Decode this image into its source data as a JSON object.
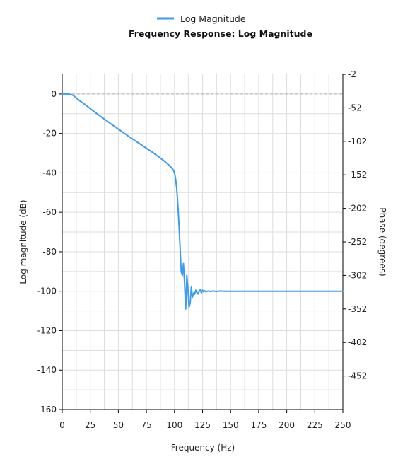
{
  "chart_data": {
    "type": "line",
    "title": "Frequency Response: Log Magnitude",
    "legend": {
      "placement": "top-center",
      "entries": [
        "Log Magnitude"
      ]
    },
    "xlabel": "Frequency (Hz)",
    "ylabel": "Log magnitude (dB)",
    "y2label": "Phase (degrees)",
    "xlim": [
      0,
      250
    ],
    "ylim": [
      -160,
      10
    ],
    "y2lim": [
      -502,
      -2
    ],
    "xticks": [
      "0",
      "25",
      "50",
      "75",
      "100",
      "125",
      "150",
      "175",
      "200",
      "225",
      "250"
    ],
    "yticks": [
      "0",
      "-20",
      "-40",
      "-60",
      "-80",
      "-100",
      "-120",
      "-140",
      "-160"
    ],
    "y2ticks": [
      "-2",
      "-52",
      "-102",
      "-152",
      "-202",
      "-252",
      "-302",
      "-352",
      "-402",
      "-452"
    ],
    "grid": true,
    "reference_line": {
      "y": 0,
      "style": "dashed",
      "color": "#bbbbbb"
    },
    "series": [
      {
        "name": "Log Magnitude",
        "color": "#3b9cf0",
        "x": [
          0,
          5,
          8,
          10,
          12,
          15,
          20,
          30,
          40,
          50,
          60,
          70,
          80,
          90,
          95,
          97,
          99,
          100,
          101,
          102,
          103,
          104,
          105,
          106,
          107,
          108,
          109,
          110,
          111,
          112,
          113,
          114,
          115,
          116,
          117,
          118,
          119,
          120,
          121,
          122,
          123,
          124,
          125,
          126,
          127,
          128,
          130,
          132,
          134,
          136,
          138,
          140,
          145,
          150,
          160,
          170,
          180,
          190,
          200,
          225,
          250
        ],
        "y": [
          0,
          0,
          -0.3,
          -0.8,
          -1.8,
          -3.2,
          -5.2,
          -9.6,
          -13.8,
          -17.8,
          -21.8,
          -25.6,
          -29.4,
          -33.6,
          -36.0,
          -37.2,
          -38.5,
          -40.0,
          -43.0,
          -48.0,
          -56.0,
          -66.0,
          -78.0,
          -90.0,
          -92.0,
          -86.0,
          -96.0,
          -109.0,
          -92.0,
          -99.0,
          -108.0,
          -106.0,
          -98.0,
          -103.0,
          -101.0,
          -101.5,
          -99.5,
          -100.6,
          -101.4,
          -100.0,
          -99.2,
          -100.8,
          -99.5,
          -100.3,
          -99.8,
          -100.2,
          -99.9,
          -100.1,
          -99.9,
          -100.0,
          -100.1,
          -99.9,
          -100.0,
          -100.0,
          -100.0,
          -100.0,
          -100.0,
          -100.0,
          -100.0,
          -100.0,
          -100.0
        ]
      }
    ]
  }
}
